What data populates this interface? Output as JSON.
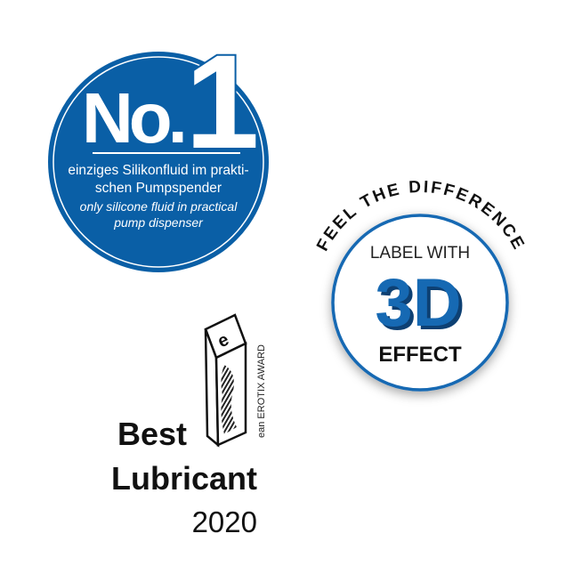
{
  "colors": {
    "brand_blue": "#0a5fa6",
    "dark_blue": "#0b3f73",
    "text_black": "#1a1a1a"
  },
  "no1_badge": {
    "no_text": "No.",
    "one_text": "1",
    "german_line1": "einziges Silikonfluid im prakti-",
    "german_line2": "schen Pumpspender",
    "english_line1": "only silicone fluid in practical",
    "english_line2": "pump dispenser"
  },
  "label_badge": {
    "arc_text": "FEEL THE DIFFERENCE",
    "line1": "LABEL WITH",
    "big_text": "3D",
    "line3": "EFFECT"
  },
  "award": {
    "trophy_letter": "e",
    "vertical_text": "ean EROTIX AWARD",
    "title_line1": "Best",
    "title_line2": "Lubricant",
    "year": "2020"
  }
}
